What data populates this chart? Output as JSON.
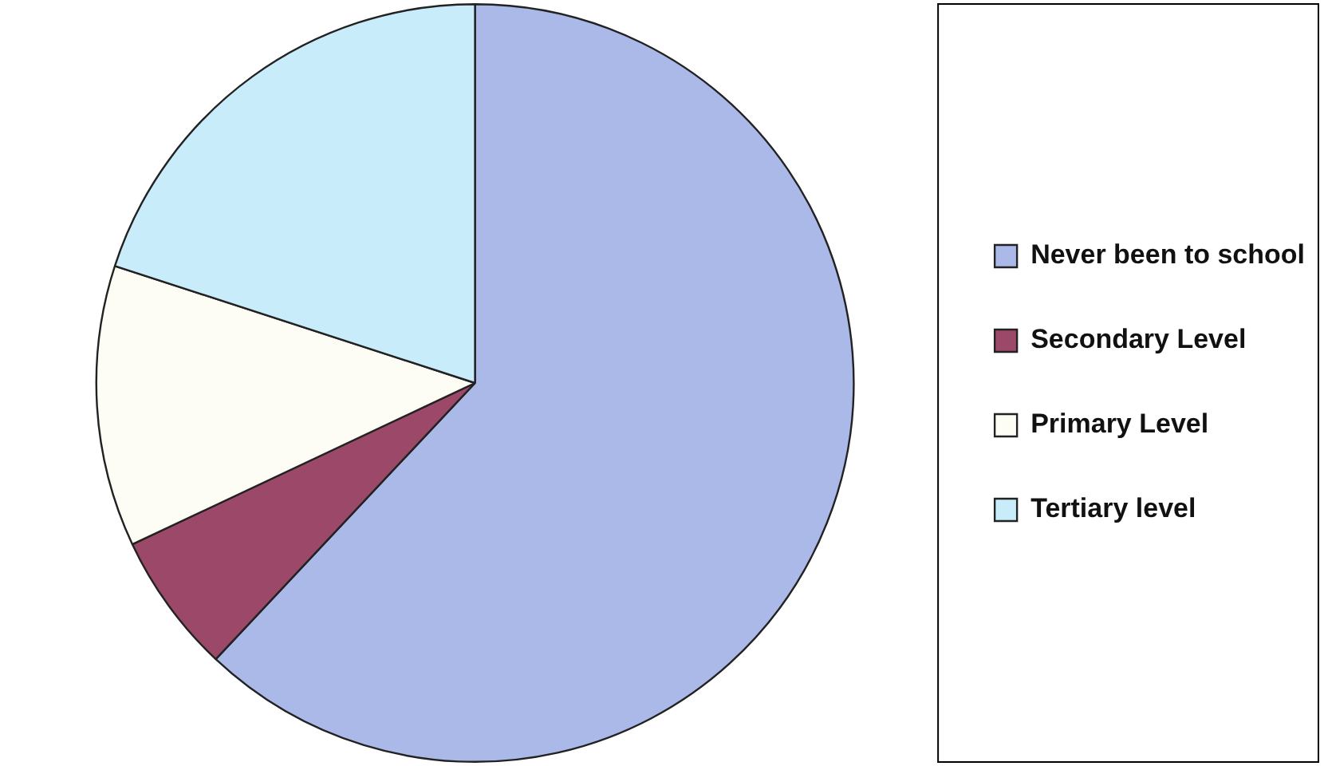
{
  "chart_data": {
    "type": "pie",
    "categories": [
      "Never been to school",
      "Secondary Level",
      "Primary Level",
      "Tertiary level"
    ],
    "values": [
      62,
      6,
      12,
      20
    ],
    "colors": [
      "#aab9e8",
      "#9c4868",
      "#fdfdf6",
      "#c9ecfb"
    ],
    "legend": "right"
  }
}
